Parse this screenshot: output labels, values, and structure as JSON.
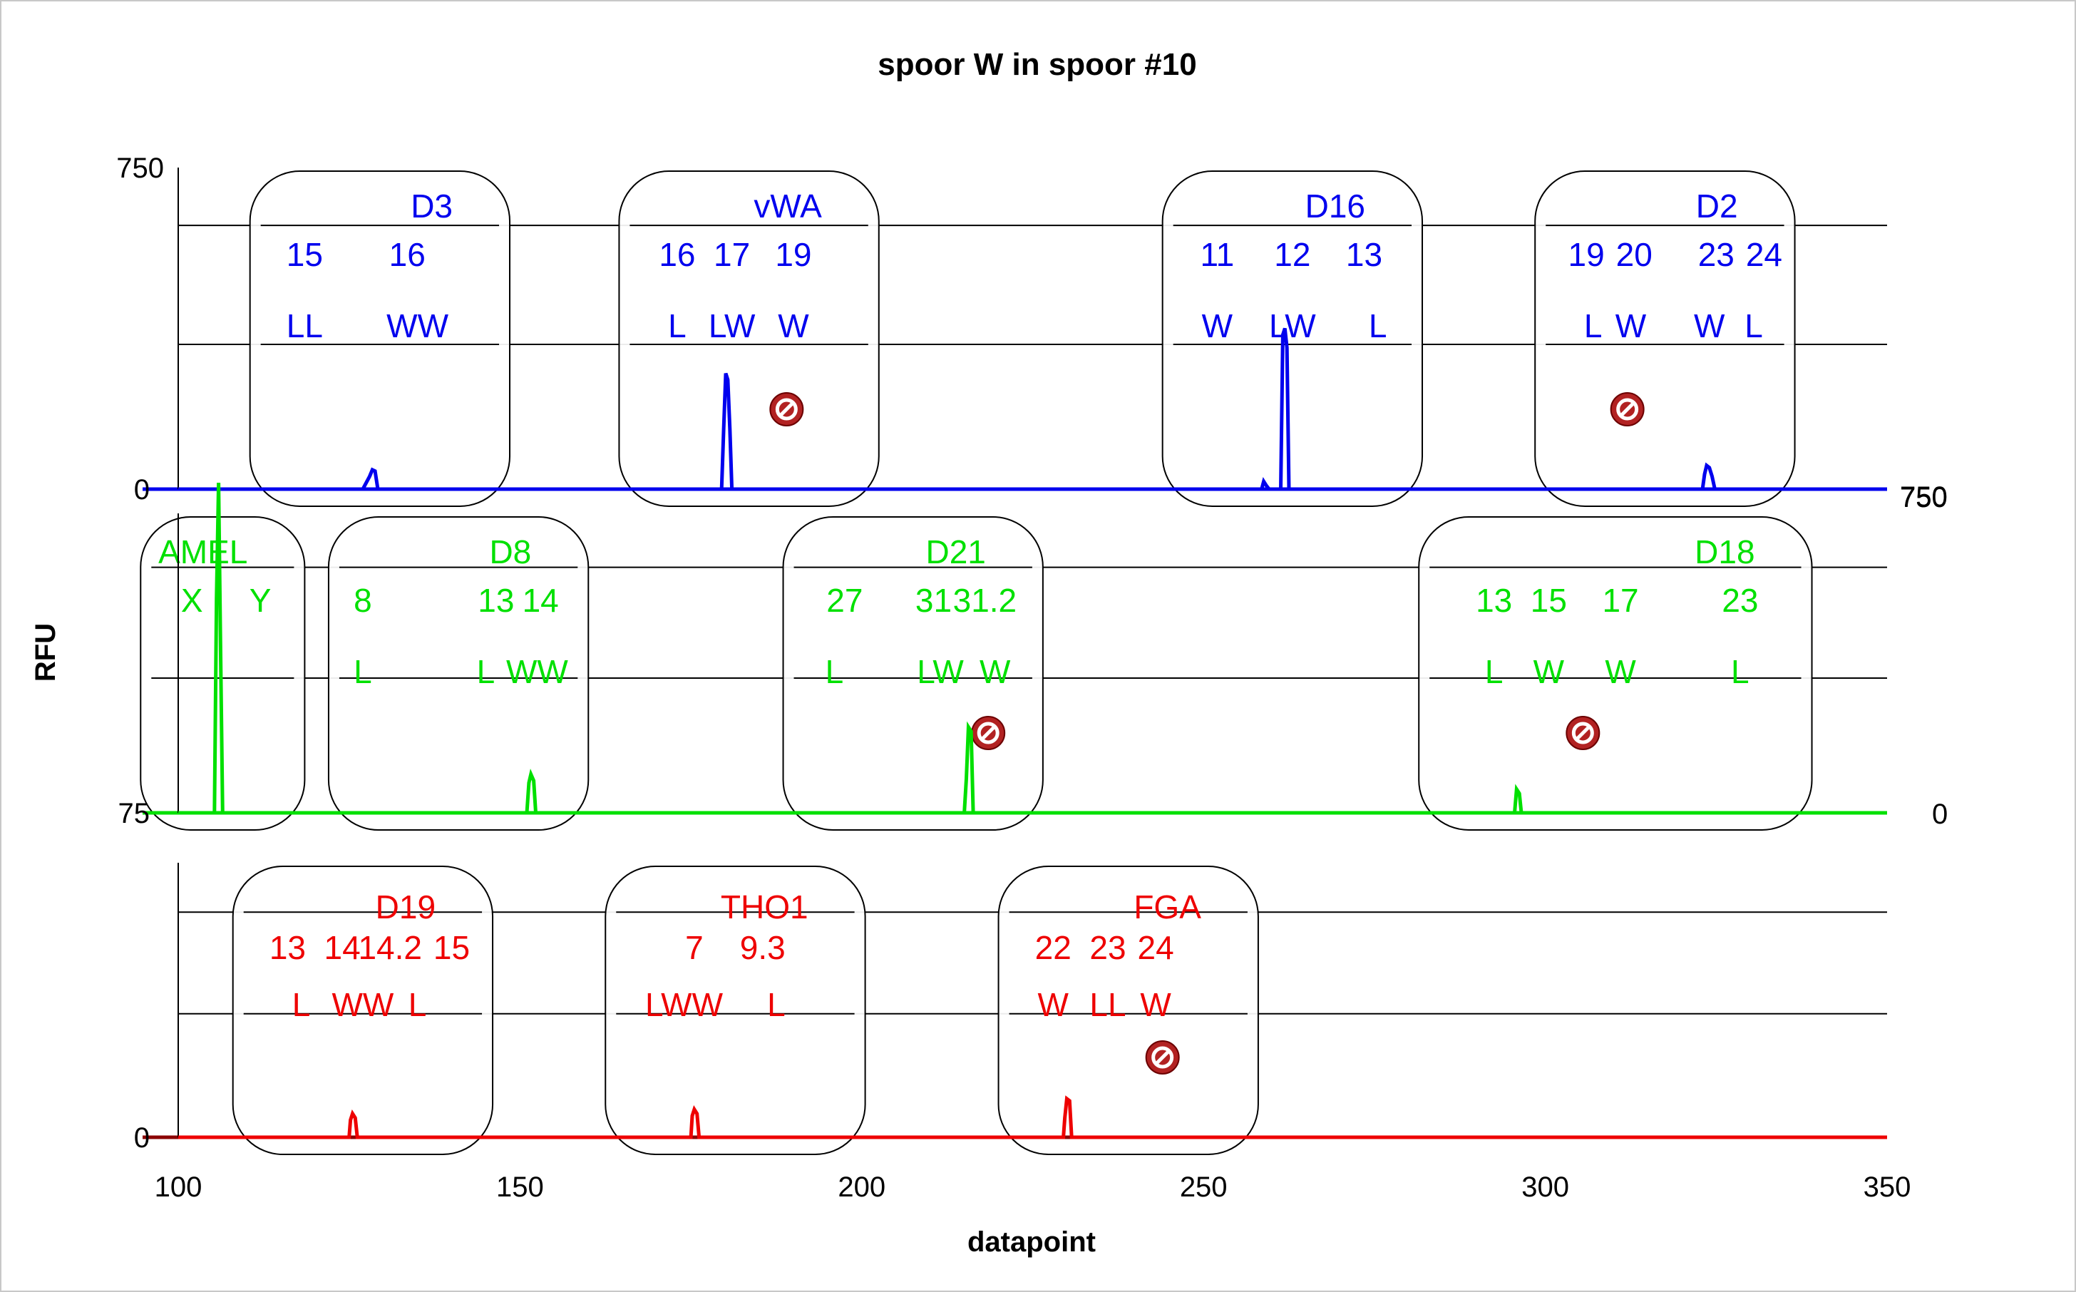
{
  "chart_data": {
    "type": "line",
    "title": "spoor W in spoor #10",
    "xlabel": "datapoint",
    "ylabel": "RFU",
    "xlim": [
      100,
      350
    ],
    "x_ticks": [
      "100",
      "150",
      "200",
      "250",
      "300",
      "350"
    ],
    "legend": "none",
    "grid": true,
    "colors": {
      "blue": "#0000ee",
      "green": "#00e000",
      "red": "#ee0000",
      "red_axis": "#8b0000",
      "marker": "#b22222"
    },
    "panels": [
      {
        "name": "blue",
        "color": "blue",
        "ylim": [
          0,
          750
        ],
        "tick_labels": {
          "left_top": "750",
          "left_bottom": "0",
          "right": "750"
        },
        "trace": [
          [
            100,
            0
          ],
          [
            127,
            0
          ],
          [
            128,
            30
          ],
          [
            128.4,
            45
          ],
          [
            128.8,
            42
          ],
          [
            129.2,
            0
          ],
          [
            179.5,
            0
          ],
          [
            179.8,
            140
          ],
          [
            180.1,
            270
          ],
          [
            180.4,
            255
          ],
          [
            180.7,
            140
          ],
          [
            181,
            0
          ],
          [
            258.5,
            0
          ],
          [
            258.8,
            18
          ],
          [
            259.2,
            8
          ],
          [
            259.6,
            0
          ],
          [
            261.3,
            0
          ],
          [
            261.6,
            360
          ],
          [
            261.9,
            375
          ],
          [
            262.2,
            330
          ],
          [
            262.5,
            0
          ],
          [
            323,
            0
          ],
          [
            323.3,
            35
          ],
          [
            323.6,
            55
          ],
          [
            324,
            50
          ],
          [
            324.4,
            30
          ],
          [
            324.8,
            0
          ],
          [
            350,
            0
          ]
        ],
        "loci": [
          {
            "name": "D3",
            "x0": 110.5,
            "x1": 148.5,
            "cols": [
              {
                "allele": "15",
                "x": 118.5,
                "label": "LL",
                "lx": 118.5
              },
              {
                "allele": "16",
                "x": 133.5,
                "label": "WW",
                "lx": 135
              }
            ],
            "blocked_at": null
          },
          {
            "name": "vWA",
            "x0": 164.5,
            "x1": 202.5,
            "cols": [
              {
                "allele": "16",
                "x": 173,
                "label": "L",
                "lx": 173
              },
              {
                "allele": "17",
                "x": 181,
                "label": "LW",
                "lx": 181
              },
              {
                "allele": "19",
                "x": 190,
                "label": "W",
                "lx": 190
              }
            ],
            "blocked_at": 189
          },
          {
            "name": "D16",
            "x0": 244,
            "x1": 282,
            "cols": [
              {
                "allele": "11",
                "x": 252,
                "label": "W",
                "lx": 252
              },
              {
                "allele": "12",
                "x": 263,
                "label": "LW",
                "lx": 263
              },
              {
                "allele": "13",
                "x": 273.5,
                "label": "L",
                "lx": 275.5
              }
            ],
            "blocked_at": null
          },
          {
            "name": "D2",
            "x0": 298.5,
            "x1": 336.5,
            "cols": [
              {
                "allele": "19",
                "x": 306,
                "label": "L",
                "lx": 307
              },
              {
                "allele": "20",
                "x": 313,
                "label": "W",
                "lx": 312.5
              },
              {
                "allele": "23",
                "x": 325,
                "label": "W",
                "lx": 324
              },
              {
                "allele": "24",
                "x": 332,
                "label": "L",
                "lx": 330.5
              }
            ],
            "blocked_at": 312
          }
        ]
      },
      {
        "name": "green",
        "color": "green",
        "ylim": [
          0,
          750
        ],
        "tick_labels": {
          "left_bottom": "75",
          "right_top": "750",
          "right_bottom": "0"
        },
        "trace": [
          [
            100,
            0
          ],
          [
            105.3,
            0
          ],
          [
            105.6,
            500
          ],
          [
            105.9,
            770
          ],
          [
            106.2,
            380
          ],
          [
            106.5,
            0
          ],
          [
            151,
            0
          ],
          [
            151.3,
            70
          ],
          [
            151.6,
            90
          ],
          [
            152,
            75
          ],
          [
            152.3,
            0
          ],
          [
            215,
            0
          ],
          [
            215.3,
            80
          ],
          [
            215.6,
            200
          ],
          [
            216,
            190
          ],
          [
            216.3,
            0
          ],
          [
            295.5,
            0
          ],
          [
            295.8,
            55
          ],
          [
            296.2,
            45
          ],
          [
            296.5,
            0
          ],
          [
            350,
            0
          ]
        ],
        "loci": [
          {
            "name": "AMEL",
            "x0": 94.5,
            "x1": 118.5,
            "cols": [
              {
                "allele": "X",
                "x": 102,
                "label": "",
                "lx": 102
              },
              {
                "allele": "Y",
                "x": 112,
                "label": "",
                "lx": 112
              }
            ],
            "blocked_at": null
          },
          {
            "name": "D8",
            "x0": 122,
            "x1": 160,
            "cols": [
              {
                "allele": "8",
                "x": 127,
                "label": "L",
                "lx": 127
              },
              {
                "allele": "13",
                "x": 146.5,
                "label": "L",
                "lx": 145
              },
              {
                "allele": "14",
                "x": 153,
                "label": "WW",
                "lx": 152.5
              }
            ],
            "blocked_at": null
          },
          {
            "name": "D21",
            "x0": 188.5,
            "x1": 226.5,
            "cols": [
              {
                "allele": "27",
                "x": 197.5,
                "label": "L",
                "lx": 196
              },
              {
                "allele": "31",
                "x": 210.5,
                "label": "LW",
                "lx": 211.5
              },
              {
                "allele": "31.2",
                "x": 218,
                "label": "W",
                "lx": 219.5
              }
            ],
            "blocked_at": 218.5
          },
          {
            "name": "D18",
            "x0": 281.5,
            "x1": 339,
            "cols": [
              {
                "allele": "13",
                "x": 292.5,
                "label": "L",
                "lx": 292.5
              },
              {
                "allele": "15",
                "x": 300.5,
                "label": "W",
                "lx": 300.5
              },
              {
                "allele": "17",
                "x": 311,
                "label": "W",
                "lx": 311
              },
              {
                "allele": "23",
                "x": 328.5,
                "label": "L",
                "lx": 328.5
              }
            ],
            "blocked_at": 305.5
          }
        ]
      },
      {
        "name": "red",
        "color": "red",
        "axis_color": "red_axis",
        "ylim": [
          0,
          750
        ],
        "tick_labels": {
          "left_bottom": "0"
        },
        "trace": [
          [
            100,
            0
          ],
          [
            125,
            0
          ],
          [
            125.2,
            40
          ],
          [
            125.5,
            55
          ],
          [
            125.9,
            45
          ],
          [
            126.2,
            0
          ],
          [
            175,
            0
          ],
          [
            175.2,
            50
          ],
          [
            175.5,
            65
          ],
          [
            175.9,
            55
          ],
          [
            176.2,
            0
          ],
          [
            229.5,
            0
          ],
          [
            229.7,
            45
          ],
          [
            230,
            90
          ],
          [
            230.4,
            85
          ],
          [
            230.7,
            0
          ],
          [
            350,
            0
          ]
        ],
        "loci": [
          {
            "name": "D19",
            "x0": 108,
            "x1": 146,
            "cols": [
              {
                "allele": "13",
                "x": 116,
                "label": "L",
                "lx": 118
              },
              {
                "allele": "14",
                "x": 124,
                "label": "WW",
                "lx": 127
              },
              {
                "allele": "14.2",
                "x": 131,
                "label": "",
                "lx": 131
              },
              {
                "allele": "15",
                "x": 140,
                "label": "L",
                "lx": 135
              }
            ],
            "blocked_at": null
          },
          {
            "name": "THO1",
            "x0": 162.5,
            "x1": 200.5,
            "cols": [
              {
                "allele": "7",
                "x": 175.5,
                "label": "LWW",
                "lx": 174
              },
              {
                "allele": "9.3",
                "x": 185.5,
                "label": "L",
                "lx": 187.5
              }
            ],
            "blocked_at": null
          },
          {
            "name": "FGA",
            "x0": 220,
            "x1": 258,
            "cols": [
              {
                "allele": "22",
                "x": 228,
                "label": "W",
                "lx": 228
              },
              {
                "allele": "23",
                "x": 236,
                "label": "LL",
                "lx": 236
              },
              {
                "allele": "24",
                "x": 243,
                "label": "W",
                "lx": 243
              }
            ],
            "blocked_at": 244
          }
        ]
      }
    ]
  }
}
